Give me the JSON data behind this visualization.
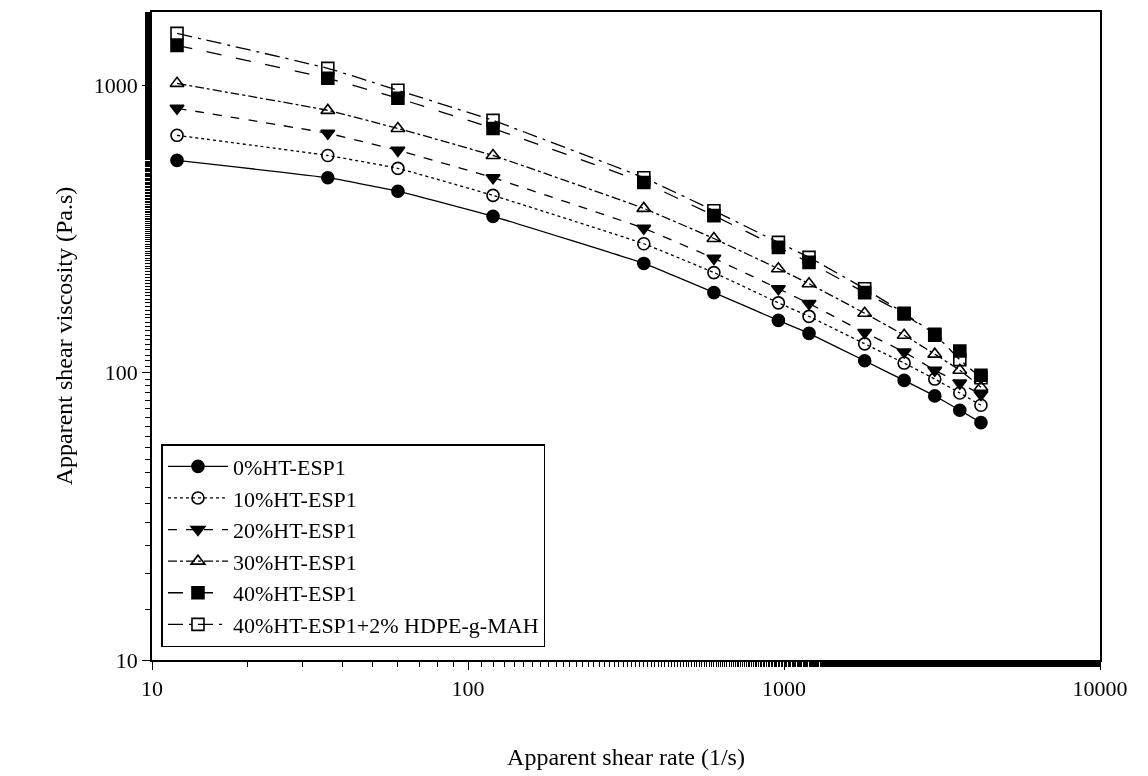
{
  "chart_data": {
    "type": "line",
    "xlabel": "Apparent shear rate (1/s)",
    "ylabel": "Apparent shear viscosity (Pa.s)",
    "log": "xy",
    "xlim": [
      10,
      10000
    ],
    "xticks": [
      10,
      100,
      1000,
      10000
    ],
    "ylim": [
      10,
      1800
    ],
    "yticks": [
      10,
      100,
      1000
    ],
    "grid": false,
    "legend": "bottom left",
    "x": [
      12,
      36,
      60,
      120,
      360,
      600,
      960,
      1200,
      1800,
      2400,
      3000,
      3600,
      4200
    ],
    "series": [
      {
        "name": "0%HT-ESP1",
        "color": "#000000",
        "marker": "circle",
        "line_style": "solid",
        "values": [
          548,
          477,
          428,
          350,
          240,
          190,
          152,
          137,
          110,
          94,
          83,
          74,
          67
        ]
      },
      {
        "name": "10%HT-ESP1",
        "color": "#000000",
        "marker": "circle-open",
        "line_style": "dotted",
        "values": [
          670,
          570,
          514,
          414,
          281,
          223,
          175,
          157,
          126,
          108,
          95,
          85,
          77
        ]
      },
      {
        "name": "20%HT-ESP1",
        "color": "#000000",
        "marker": "triangle-down",
        "line_style": "dashed",
        "values": [
          832,
          681,
          594,
          477,
          318,
          250,
          196,
          174,
          138,
          118,
          102,
          92,
          84
        ]
      },
      {
        "name": "30%HT-ESP1",
        "color": "#000000",
        "marker": "triangle-up-open",
        "line_style": "dashdot",
        "values": [
          1016,
          818,
          708,
          570,
          373,
          293,
          230,
          204,
          161,
          135,
          116,
          102,
          89
        ]
      },
      {
        "name": "40%HT-ESP1",
        "color": "#000000",
        "marker": "square",
        "line_style": "longdash",
        "values": [
          1378,
          1058,
          902,
          708,
          459,
          352,
          273,
          242,
          190,
          160,
          135,
          119,
          98
        ]
      },
      {
        "name": "40%HT-ESP1+2% HDPE-g-MAH",
        "color": "#000000",
        "marker": "square-open",
        "line_style": "longdashdot",
        "values": [
          1517,
          1146,
          961,
          755,
          477,
          366,
          284,
          252,
          196,
          161,
          136,
          111,
          96
        ]
      }
    ]
  }
}
